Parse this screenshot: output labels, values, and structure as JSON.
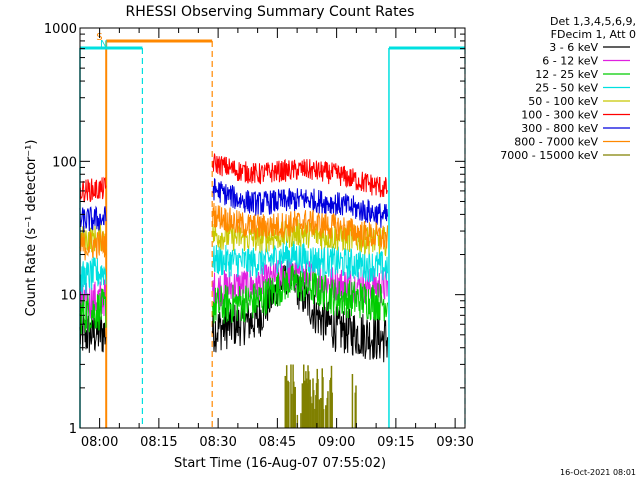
{
  "chart_data": {
    "type": "line",
    "title": "RHESSI Observing Summary Count Rates",
    "xlabel": "Start Time (16-Aug-07 07:55:02)",
    "ylabel": "Count Rate (s⁻¹ detector⁻¹)",
    "y_scale": "log",
    "ylim": [
      1,
      1000
    ],
    "xlim": [
      "07:55:02",
      "09:32:30"
    ],
    "x_ticks": [
      "08:00",
      "08:15",
      "08:30",
      "08:45",
      "09:00",
      "09:15",
      "09:30"
    ],
    "y_ticks": [
      {
        "value": 1,
        "label": "1"
      },
      {
        "value": 10,
        "label": "10"
      },
      {
        "value": 100,
        "label": "100"
      },
      {
        "value": 1000,
        "label": "1000"
      }
    ],
    "gaps": [
      [
        "08:01:40",
        "08:28:30"
      ],
      [
        "09:13:15",
        "09:32:30"
      ]
    ],
    "legend": {
      "position": "right",
      "header": [
        "Det 1,3,4,5,6,9,",
        "FDecim 1, Att 0"
      ]
    },
    "series": [
      {
        "name": "3 - 6 keV",
        "color": "#000000",
        "points": [
          [
            "07:55",
            5.0
          ],
          [
            "08:01",
            5.2
          ],
          [
            "08:29",
            5.5
          ],
          [
            "08:40",
            6.5
          ],
          [
            "08:45",
            11
          ],
          [
            "08:48",
            14
          ],
          [
            "08:50",
            11
          ],
          [
            "08:55",
            7
          ],
          [
            "09:00",
            5.5
          ],
          [
            "09:10",
            4.8
          ],
          [
            "09:13",
            4.6
          ]
        ]
      },
      {
        "name": "6 - 12 keV",
        "color": "#e020e0",
        "points": [
          [
            "07:55",
            8.5
          ],
          [
            "08:01",
            9.5
          ],
          [
            "08:29",
            11
          ],
          [
            "08:40",
            12
          ],
          [
            "08:48",
            14.5
          ],
          [
            "08:55",
            13
          ],
          [
            "09:00",
            12
          ],
          [
            "09:13",
            11.5
          ]
        ]
      },
      {
        "name": "12 - 25 keV",
        "color": "#00cc00",
        "points": [
          [
            "07:55",
            7.2
          ],
          [
            "08:01",
            7.8
          ],
          [
            "08:29",
            8.2
          ],
          [
            "08:40",
            9
          ],
          [
            "08:48",
            12.5
          ],
          [
            "08:55",
            11
          ],
          [
            "09:00",
            9.5
          ],
          [
            "09:13",
            8.8
          ]
        ]
      },
      {
        "name": "25 - 50 keV",
        "color": "#00e0e0",
        "points": [
          [
            "07:55",
            13
          ],
          [
            "08:01",
            15
          ],
          [
            "08:29",
            18
          ],
          [
            "08:40",
            17.5
          ],
          [
            "08:48",
            20
          ],
          [
            "08:55",
            18
          ],
          [
            "09:13",
            16
          ]
        ]
      },
      {
        "name": "50 - 100 keV",
        "color": "#c8c800",
        "points": [
          [
            "07:55",
            26
          ],
          [
            "08:01",
            27
          ],
          [
            "08:29",
            28
          ],
          [
            "08:40",
            26
          ],
          [
            "08:50",
            29
          ],
          [
            "09:00",
            27
          ],
          [
            "09:13",
            25
          ]
        ]
      },
      {
        "name": "100 - 300 keV",
        "color": "#ff0000",
        "points": [
          [
            "07:55",
            60
          ],
          [
            "08:01",
            62
          ],
          [
            "08:29",
            97
          ],
          [
            "08:35",
            85
          ],
          [
            "08:40",
            80
          ],
          [
            "08:45",
            84
          ],
          [
            "08:52",
            87
          ],
          [
            "09:00",
            80
          ],
          [
            "09:08",
            68
          ],
          [
            "09:13",
            62
          ]
        ]
      },
      {
        "name": "300 - 800 keV",
        "color": "#0000dd",
        "points": [
          [
            "07:55",
            36
          ],
          [
            "08:01",
            37
          ],
          [
            "08:29",
            62
          ],
          [
            "08:35",
            52
          ],
          [
            "08:40",
            48
          ],
          [
            "08:45",
            50
          ],
          [
            "08:52",
            52
          ],
          [
            "09:00",
            48
          ],
          [
            "09:08",
            42
          ],
          [
            "09:13",
            38
          ]
        ]
      },
      {
        "name": "800 - 7000 keV",
        "color": "#ff8800",
        "points": [
          [
            "07:55",
            23
          ],
          [
            "08:01",
            24
          ],
          [
            "08:29",
            40
          ],
          [
            "08:35",
            34
          ],
          [
            "08:40",
            32
          ],
          [
            "08:45",
            33
          ],
          [
            "08:52",
            35
          ],
          [
            "09:00",
            32
          ],
          [
            "09:08",
            28
          ],
          [
            "09:13",
            26
          ]
        ]
      },
      {
        "name": "7000 - 15000 keV",
        "color": "#808000",
        "bursts": [
          [
            "08:47",
            "08:59"
          ],
          [
            "09:04",
            "09:05"
          ]
        ],
        "burst_peak": 3.0
      }
    ],
    "flags": [
      {
        "label": "S",
        "color": "#ff8800",
        "start": "08:01:40",
        "end": "08:28:30"
      },
      {
        "label": "N",
        "color": "#00e0e0",
        "start": "07:55:02",
        "end": "08:10:50"
      },
      {
        "label": "",
        "color": "#00e0e0",
        "start": "09:13:15",
        "end": "09:32:30"
      }
    ]
  },
  "timestamp": "16-Oct-2021 08:01"
}
